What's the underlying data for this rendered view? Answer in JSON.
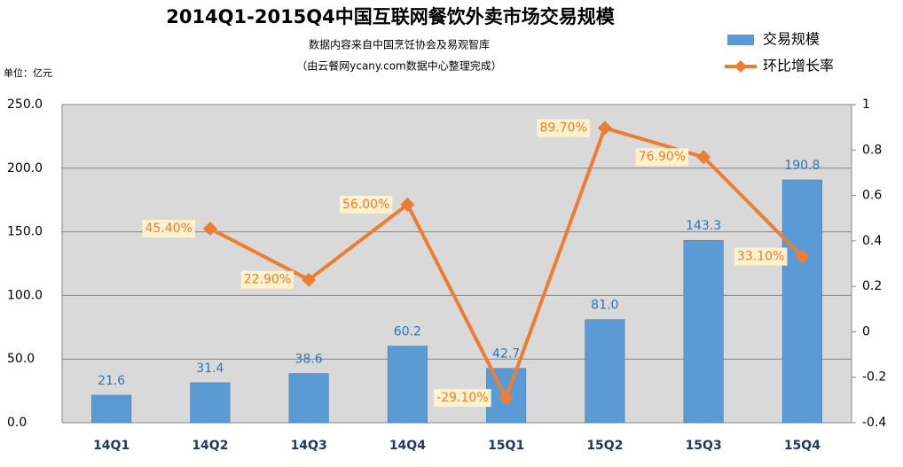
{
  "chart_data": {
    "type": "bar_line",
    "title": "2014Q1-2015Q4中国互联网餐饮外卖市场交易规模",
    "subtitle": [
      "数据内容来自中国烹饪协会及易观智库",
      "（由云餐网ycany.com数据中心整理完成）"
    ],
    "unit_label": "单位：亿元",
    "categories": [
      "14Q1",
      "14Q2",
      "14Q3",
      "14Q4",
      "15Q1",
      "15Q2",
      "15Q3",
      "15Q4"
    ],
    "series": [
      {
        "name": "交易规模",
        "type": "bar",
        "color": "#5b9bd5",
        "axis": "y",
        "values": [
          21.6,
          31.4,
          38.6,
          60.2,
          42.7,
          81.0,
          143.3,
          190.8
        ],
        "value_labels": [
          "21.6",
          "31.4",
          "38.6",
          "60.2",
          "42.7",
          "81.0",
          "143.3",
          "190.8"
        ]
      },
      {
        "name": "环比增长率",
        "type": "line",
        "color": "#ed7d31",
        "axis": "y2",
        "values": [
          null,
          0.454,
          0.229,
          0.56,
          -0.291,
          0.897,
          0.769,
          0.331
        ],
        "value_labels": [
          null,
          "45.40%",
          "22.90%",
          "56.00%",
          "-29.10%",
          "89.70%",
          "76.90%",
          "33.10%"
        ]
      }
    ],
    "ylim": [
      0,
      250
    ],
    "yticks": [
      {
        "value": 0,
        "label": "0.0"
      },
      {
        "value": 50,
        "label": "50.0"
      },
      {
        "value": 100,
        "label": "100.0"
      },
      {
        "value": 150,
        "label": "150.0"
      },
      {
        "value": 200,
        "label": "200.0"
      },
      {
        "value": 250,
        "label": "250.0"
      }
    ],
    "y2lim": [
      -0.4,
      1
    ],
    "y2ticks": [
      -0.4,
      -0.2,
      0,
      0.2,
      0.4,
      0.6,
      0.8,
      1
    ],
    "grid": true,
    "legend": "top-right"
  }
}
